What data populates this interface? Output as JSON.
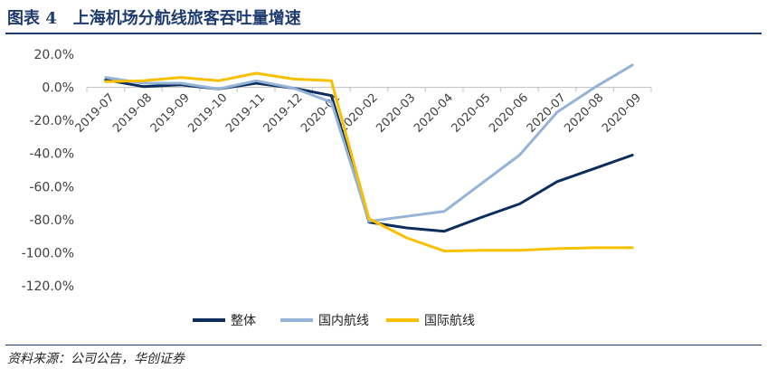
{
  "header": {
    "figure_title": "图表 4　上海机场分航线旅客吞吐量增速"
  },
  "footer": {
    "source": "资料来源：公司公告，华创证券"
  },
  "chart_data": {
    "type": "line",
    "title": "图表 4　上海机场分航线旅客吞吐量增速",
    "xlabel": "",
    "ylabel": "",
    "x": [
      "2019-07",
      "2019-08",
      "2019-09",
      "2019-10",
      "2019-11",
      "2019-12",
      "2020-01",
      "2020-02",
      "2020-03",
      "2020-04",
      "2020-05",
      "2020-06",
      "2020-07",
      "2020-08",
      "2020-09"
    ],
    "ylim": [
      -120,
      20
    ],
    "yticks": [
      20,
      0,
      -20,
      -40,
      -60,
      -80,
      -100,
      -120
    ],
    "ytick_labels": [
      "20.0%",
      "0.0%",
      "-20.0%",
      "-40.0%",
      "-60.0%",
      "-80.0%",
      "-100.0%",
      "-120.0%"
    ],
    "grid": false,
    "legend_position": "bottom",
    "series": [
      {
        "name": "整体",
        "color": "#0d2e5c",
        "values": [
          4.5,
          0.5,
          1.5,
          -1.0,
          2.5,
          -0.5,
          -5.0,
          -81.5,
          -85.0,
          -87.0,
          -78.5,
          -70.5,
          -57.0,
          -49.0,
          -41.0
        ]
      },
      {
        "name": "国内航线",
        "color": "#95b3d7",
        "values": [
          6.0,
          2.5,
          2.5,
          -1.0,
          4.0,
          -0.5,
          -9.0,
          -81.0,
          -78.0,
          -75.0,
          -58.0,
          -41.0,
          -15.0,
          0.0,
          13.5
        ]
      },
      {
        "name": "国际航线",
        "color": "#f9c000",
        "values": [
          3.5,
          4.0,
          6.0,
          4.0,
          8.5,
          5.0,
          4.0,
          -79.5,
          -91.0,
          -99.0,
          -98.5,
          -98.5,
          -97.5,
          -97.0,
          -97.0
        ]
      }
    ]
  }
}
